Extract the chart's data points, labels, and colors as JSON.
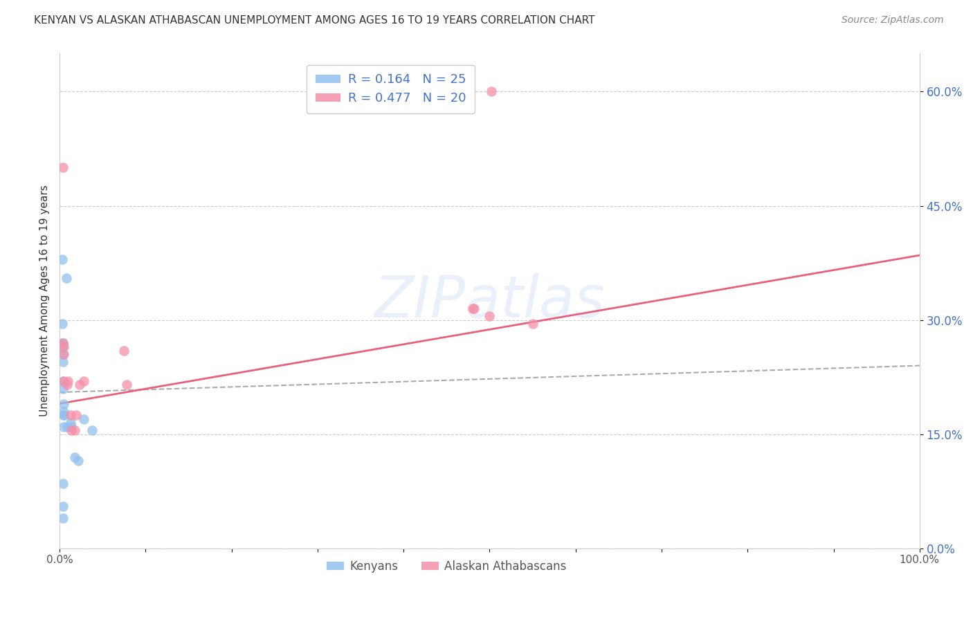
{
  "title": "KENYAN VS ALASKAN ATHABASCAN UNEMPLOYMENT AMONG AGES 16 TO 19 YEARS CORRELATION CHART",
  "source": "Source: ZipAtlas.com",
  "ylabel": "Unemployment Among Ages 16 to 19 years",
  "xlim": [
    0.0,
    1.0
  ],
  "ylim": [
    0.0,
    0.65
  ],
  "yticks": [
    0.0,
    0.15,
    0.3,
    0.45,
    0.6
  ],
  "ytick_labels": [
    "0.0%",
    "15.0%",
    "30.0%",
    "45.0%",
    "60.0%"
  ],
  "xticks": [
    0.0,
    0.1,
    0.2,
    0.3,
    0.4,
    0.5,
    0.6,
    0.7,
    0.8,
    0.9,
    1.0
  ],
  "xtick_labels": [
    "0.0%",
    "",
    "",
    "",
    "",
    "",
    "",
    "",
    "",
    "",
    "100.0%"
  ],
  "kenyan_R": 0.164,
  "kenyan_N": 25,
  "athabascan_R": 0.477,
  "athabascan_N": 20,
  "kenyan_color": "#92c0ed",
  "athabascan_color": "#f590a8",
  "kenyan_line_color": "#4472c4",
  "athabascan_line_color": "#e8607a",
  "watermark": "ZIPatlas",
  "background_color": "#ffffff",
  "kenyan_scatter_x": [
    0.003,
    0.008,
    0.003,
    0.003,
    0.004,
    0.004,
    0.004,
    0.004,
    0.004,
    0.004,
    0.005,
    0.005,
    0.005,
    0.005,
    0.005,
    0.009,
    0.013,
    0.014,
    0.018,
    0.022,
    0.028,
    0.038,
    0.004,
    0.004,
    0.004
  ],
  "kenyan_scatter_y": [
    0.38,
    0.355,
    0.295,
    0.27,
    0.27,
    0.265,
    0.255,
    0.245,
    0.22,
    0.21,
    0.19,
    0.18,
    0.175,
    0.175,
    0.16,
    0.16,
    0.165,
    0.16,
    0.12,
    0.115,
    0.17,
    0.155,
    0.085,
    0.055,
    0.04
  ],
  "athabascan_scatter_x": [
    0.004,
    0.004,
    0.005,
    0.005,
    0.005,
    0.009,
    0.01,
    0.013,
    0.014,
    0.018,
    0.019,
    0.023,
    0.028,
    0.075,
    0.078,
    0.48,
    0.482,
    0.55,
    0.5,
    0.502
  ],
  "athabascan_scatter_y": [
    0.5,
    0.27,
    0.265,
    0.255,
    0.22,
    0.215,
    0.22,
    0.175,
    0.155,
    0.155,
    0.175,
    0.215,
    0.22,
    0.26,
    0.215,
    0.315,
    0.315,
    0.295,
    0.305,
    0.6
  ],
  "kenyan_line_x0": 0.0,
  "kenyan_line_x1": 1.0,
  "kenyan_line_y0": 0.205,
  "kenyan_line_y1": 0.24,
  "athabascan_line_x0": 0.0,
  "athabascan_line_x1": 1.0,
  "athabascan_line_y0": 0.19,
  "athabascan_line_y1": 0.385
}
